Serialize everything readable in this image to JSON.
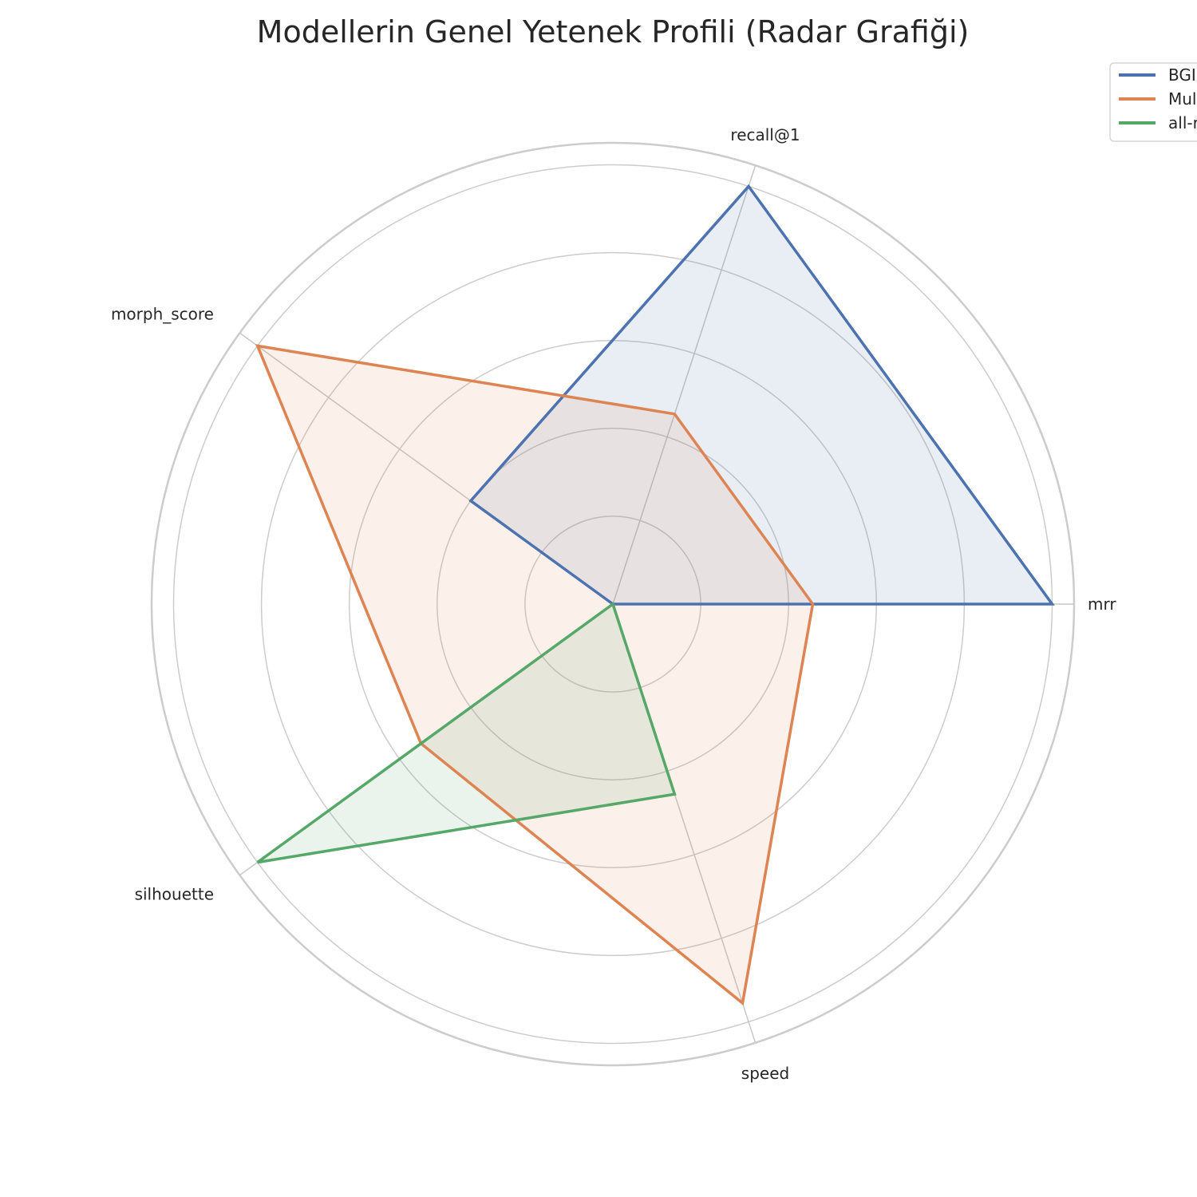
{
  "chart_data": {
    "type": "radar",
    "title": "Modellerin Genel Yetenek Profili (Radar Grafiği)",
    "axes": [
      "mrr",
      "recall@1",
      "morph_score",
      "silhouette",
      "speed"
    ],
    "rlim": [
      0,
      1.05
    ],
    "rings": [
      0.2,
      0.4,
      0.6,
      0.8,
      1.0
    ],
    "grid": true,
    "legend_position": "top-right",
    "series": [
      {
        "name": "BGI",
        "color": "#4c72b0",
        "values": [
          1.0,
          1.0,
          0.4,
          0.0,
          0.0
        ]
      },
      {
        "name": "Mul",
        "color": "#dd8452",
        "values": [
          0.455,
          0.455,
          1.0,
          0.54,
          0.955
        ]
      },
      {
        "name": "all-r",
        "color": "#55a868",
        "values": [
          0.0,
          0.0,
          0.0,
          1.0,
          0.455
        ]
      }
    ]
  }
}
